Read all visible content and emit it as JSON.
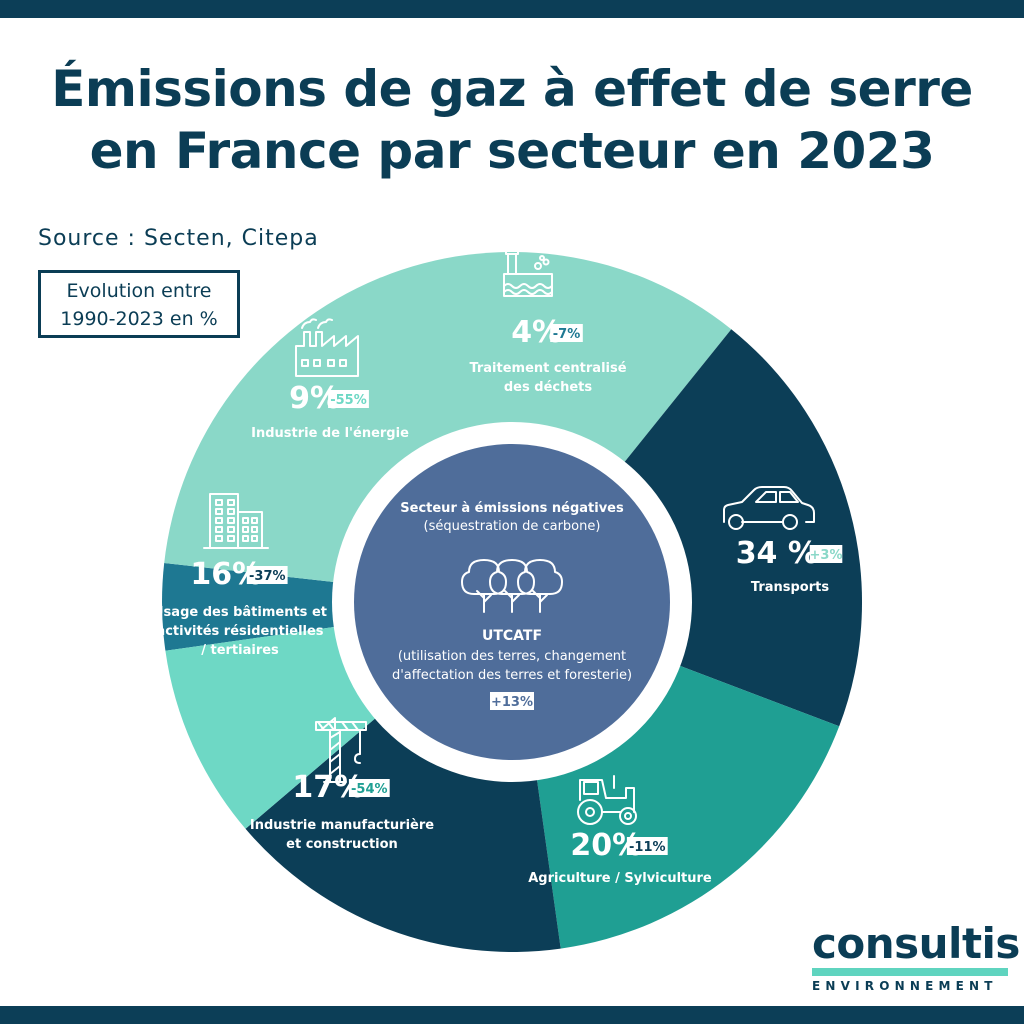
{
  "title_line1": "Émissions de gaz à effet de serre",
  "title_line2": "en France par secteur en 2023",
  "source": "Source : Secten, Citepa",
  "evolution_line1": "Evolution entre",
  "evolution_line2": "1990-2023 en %",
  "logo": {
    "word": "consultis",
    "sub": "ENVIRONNEMENT"
  },
  "colors": {
    "dark": "#0c3e57",
    "teal": "#1f9f93",
    "mint": "#6ed8c5",
    "light_mint": "#8ad8c8",
    "blue_teal": "#1e7892",
    "center": "#4f6d9a"
  },
  "chart_data": {
    "type": "pie",
    "categories": [
      "Traitement centralisé des déchets",
      "Transports",
      "Agriculture / Sylviculture",
      "Industrie manufacturière et construction",
      "Usage des bâtiments et activités résidentielles / tertiaires",
      "Industrie de l'énergie"
    ],
    "values": [
      4,
      34,
      20,
      17,
      16,
      9
    ],
    "value_labels": [
      "4%",
      "34 %",
      "20%",
      "17%",
      "16%",
      "9%"
    ],
    "evolution": [
      "-7%",
      "+3%",
      "-11%",
      "-54%",
      "-37%",
      "-55%"
    ],
    "label_lines": [
      [
        "Traitement centralisé",
        "des déchets"
      ],
      [
        "Transports"
      ],
      [
        "Agriculture / Sylviculture"
      ],
      [
        "Industrie manufacturière",
        "et construction"
      ],
      [
        "Usage des bâtiments et",
        "activités résidentielles",
        "/ tertiaires"
      ],
      [
        "Industrie de l'énergie"
      ]
    ],
    "icons": [
      "waste-treatment-icon",
      "car-icon",
      "tractor-icon",
      "crane-icon",
      "building-icon",
      "factory-icon"
    ],
    "colors": [
      "#1e7892",
      "#8ad8c8",
      "#0c3e57",
      "#1f9f93",
      "#0c3e57",
      "#6ed8c5"
    ],
    "center": {
      "title": "Secteur à émissions négatives",
      "subtitle": "(séquestration de carbone)",
      "name": "UTCATF",
      "desc_lines": [
        "(utilisation des terres, changement",
        "d'affectation des terres et foresterie)"
      ],
      "evolution": "+13%",
      "icon": "trees-icon"
    }
  }
}
